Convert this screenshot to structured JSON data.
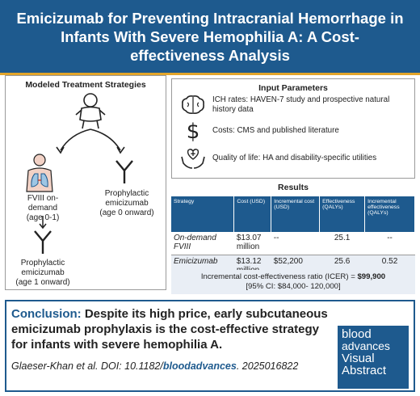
{
  "header": {
    "title": "Emicizumab for Preventing Intracranial Hemorrhage in Infants With Severe Hemophilia A: A Cost-effectiveness Analysis"
  },
  "strategies": {
    "title": "Modeled Treatment Strategies",
    "fviii_label": "FVIII on-demand",
    "fviii_age": "(age 0-1)",
    "proph0_label_1": "Prophylactic",
    "proph0_label_2": "emicizumab",
    "proph0_age": "(age 0 onward)",
    "proph1_label_1": "Prophylactic",
    "proph1_label_2": "emicizumab",
    "proph1_age": "(age 1 onward)"
  },
  "inputs": {
    "title": "Input Parameters",
    "items": [
      {
        "icon": "brain-icon",
        "text": "ICH rates: HAVEN-7 study and prospective natural history data"
      },
      {
        "icon": "dollar-icon",
        "text": "Costs: CMS and published literature"
      },
      {
        "icon": "care-hands-icon",
        "text": "Quality of life: HA and disability-specific utilities"
      }
    ]
  },
  "results": {
    "title": "Results",
    "headers": [
      "Strategy",
      "Cost (USD)",
      "Incremental cost (USD)",
      "Effectiveness (QALYs)",
      "Incremental effectiveness (QALYs)"
    ],
    "rows": [
      {
        "strategy": "On-demand FVIII",
        "cost": "$13.07 million",
        "inc_cost": "--",
        "eff": "25.1",
        "inc_eff": "--"
      },
      {
        "strategy": "Emicizumab",
        "cost": "$13.12 million",
        "inc_cost": "$52,200",
        "eff": "25.6",
        "inc_eff": "0.52"
      }
    ],
    "icer_label": "Incremental cost-effectiveness ratio (ICER) = ",
    "icer_value": "$99,900",
    "icer_ci": "[95% CI: $84,000- 120,000]"
  },
  "conclusion": {
    "label": "Conclusion:",
    "text": " Despite its high price, early subcutaneous emicizumab prophylaxis is the cost-effective strategy for infants with severe hemophilia A.",
    "citation_prefix": "Glaeser-Khan et al. DOI: 10.1182/",
    "citation_link": "bloodadvances",
    "citation_suffix": ". 2025016822"
  },
  "logo": {
    "line1": "blood",
    "line2": "advances",
    "line3": "Visual",
    "line4": "Abstract"
  },
  "colors": {
    "brand_blue": "#1e5a8e",
    "accent_gold": "#e3a52b"
  }
}
